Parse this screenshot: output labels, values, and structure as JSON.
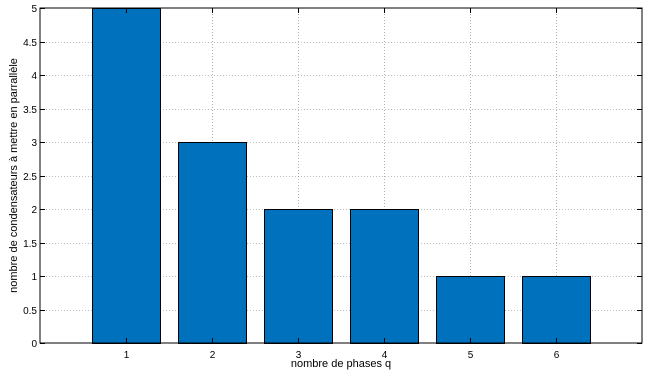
{
  "chart_data": {
    "type": "bar",
    "title": "",
    "xlabel": "nombre de phases q",
    "ylabel": "nombre de condensateurs à mettre en parrallèle",
    "categories": [
      "1",
      "2",
      "3",
      "4",
      "5",
      "6"
    ],
    "x": [
      1,
      2,
      3,
      4,
      5,
      6
    ],
    "values": [
      5,
      3,
      2,
      2,
      1,
      1
    ],
    "xlim": [
      0,
      7
    ],
    "ylim": [
      0,
      5
    ],
    "yticks": [
      "0",
      "0.5",
      "1",
      "1.5",
      "2",
      "2.5",
      "3",
      "3.5",
      "4",
      "4.5",
      "5"
    ],
    "grid": true,
    "grid_style": "dotted",
    "bar_color": "#0072bd",
    "bar_edge_color": "#000000",
    "legend": "none"
  }
}
